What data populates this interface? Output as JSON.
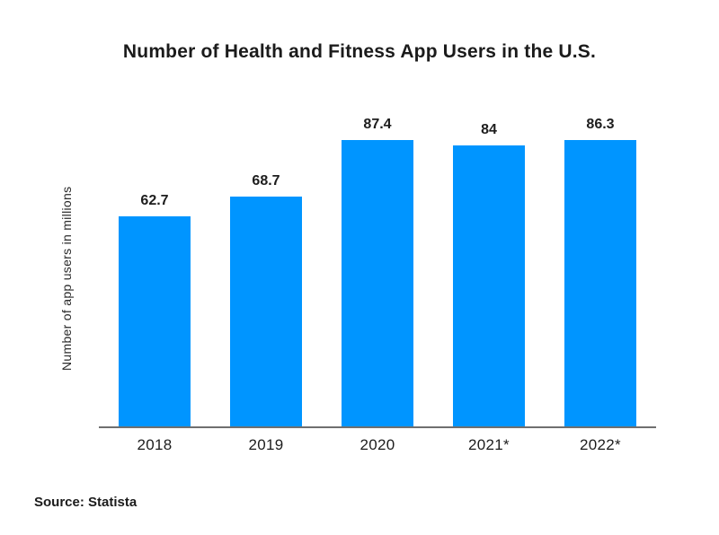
{
  "chart_data": {
    "type": "bar",
    "title": "Number of Health and Fitness App Users in the U.S.",
    "xlabel": "",
    "ylabel": "Number of app users in millions",
    "categories": [
      "2018",
      "2019",
      "2020",
      "2021*",
      "2022*"
    ],
    "values": [
      62.7,
      68.7,
      87.4,
      84,
      86.3
    ],
    "value_labels": [
      "62.7",
      "68.7",
      "87.4",
      "84",
      "86.3"
    ],
    "ylim": [
      0,
      93
    ],
    "grid": false,
    "legend": false,
    "bar_color": "#0095ff",
    "axis_color": "#6f6f6f",
    "text_color": "#1d1d1d",
    "source": "Source: Statista"
  }
}
